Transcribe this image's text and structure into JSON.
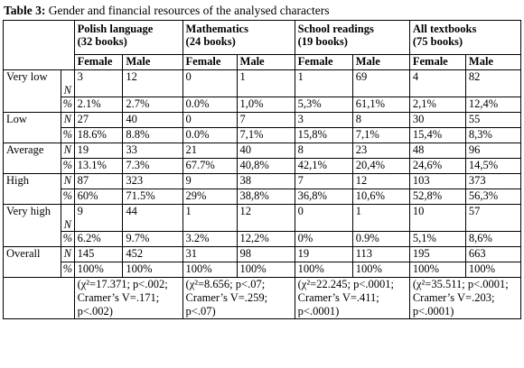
{
  "title": {
    "label": "Table 3:",
    "text": "Gender and financial resources of the analysed characters"
  },
  "groups": [
    {
      "name": "Polish language",
      "books": "(32 books)"
    },
    {
      "name": "Mathematics",
      "books": "(24 books)"
    },
    {
      "name": "School readings",
      "books": "(19 books)"
    },
    {
      "name": "All textbooks",
      "books": "(75 books)"
    }
  ],
  "genders": [
    "Female",
    "Male"
  ],
  "stat_labels": [
    "N",
    "%"
  ],
  "rows": [
    {
      "label": "Very low",
      "n": [
        3,
        12,
        0,
        1,
        1,
        69,
        4,
        82
      ],
      "pct": [
        "2.1%",
        "2.7%",
        "0.0%",
        "1,0%",
        "5,3%",
        "61,1%",
        "2,1%",
        "12,4%"
      ]
    },
    {
      "label": "Low",
      "n": [
        27,
        40,
        0,
        7,
        3,
        8,
        30,
        55
      ],
      "pct": [
        "18.6%",
        "8.8%",
        "0.0%",
        "7,1%",
        "15,8%",
        "7,1%",
        "15,4%",
        "8,3%"
      ]
    },
    {
      "label": "Average",
      "n": [
        19,
        33,
        21,
        40,
        8,
        23,
        48,
        96
      ],
      "pct": [
        "13.1%",
        "7.3%",
        "67.7%",
        "40,8%",
        "42,1%",
        "20,4%",
        "24,6%",
        "14,5%"
      ]
    },
    {
      "label": "High",
      "n": [
        87,
        323,
        9,
        38,
        7,
        12,
        103,
        373
      ],
      "pct": [
        "60%",
        "71.5%",
        "29%",
        "38,8%",
        "36,8%",
        "10,6%",
        "52,8%",
        "56,3%"
      ]
    },
    {
      "label": "Very high",
      "n": [
        9,
        44,
        1,
        12,
        0,
        1,
        10,
        57
      ],
      "pct": [
        "6.2%",
        "9.7%",
        "3.2%",
        "12,2%",
        "0%",
        "0.9%",
        "5,1%",
        "8,6%"
      ]
    },
    {
      "label": "Overall",
      "n": [
        145,
        452,
        31,
        98,
        19,
        113,
        195,
        663
      ],
      "pct": [
        "100%",
        "100%",
        "100%",
        "100%",
        "100%",
        "100%",
        "100%",
        "100%"
      ]
    }
  ],
  "tests": [
    "(χ²=17.371; p<.002; Cramer’s V=.171; p<.002)",
    "(χ²=8.656; p<.07; Cramer’s V=.259; p<.07)",
    "(χ²=22.245; p<.0001; Cramer’s V=.411; p<.0001)",
    "(χ²=35.511; p<.0001; Cramer’s V=.203; p<.0001)"
  ]
}
